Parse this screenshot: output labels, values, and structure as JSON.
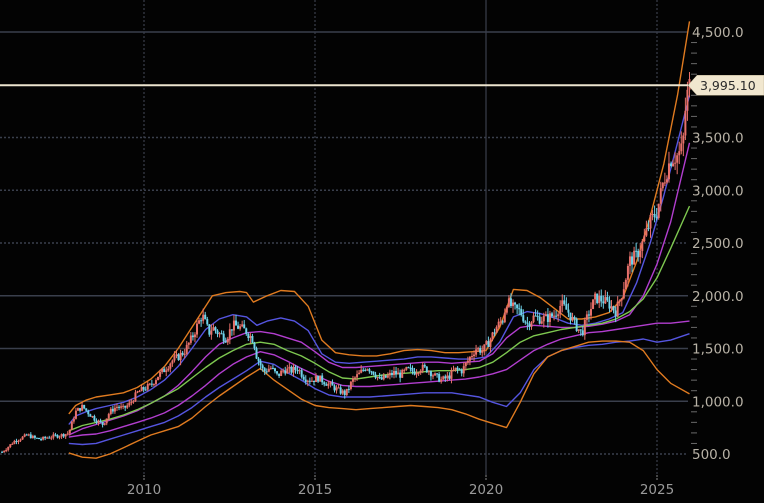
{
  "chart_data": {
    "type": "candlestick",
    "title": "",
    "xlabel": "",
    "ylabel": "",
    "ylim": [
      300,
      4700
    ],
    "xlim": [
      2005.8,
      2026.6
    ],
    "grid": true,
    "legend": "none",
    "y_ticks": [
      "500.0",
      "1,000.0",
      "1,500.0",
      "2,000.0",
      "2,500.0",
      "3,000.0",
      "3,500.0",
      "4,500.0"
    ],
    "y_tick_values": [
      500,
      1000,
      1500,
      2000,
      2500,
      3000,
      3500,
      4500
    ],
    "x_ticks": [
      "2010",
      "2015",
      "2020",
      "2025"
    ],
    "x_tick_values": [
      2010,
      2015,
      2020,
      2025
    ],
    "last_price": 3995.1,
    "last_price_label": "3,995.10",
    "series": [
      {
        "name": "price_close",
        "color_up": "#e8716b",
        "color_down": "#6fd3ea",
        "x": [
          2005.85,
          2006.0,
          2006.2,
          2006.4,
          2006.6,
          2006.8,
          2007.0,
          2007.2,
          2007.4,
          2007.6,
          2007.8,
          2008.0,
          2008.2,
          2008.4,
          2008.6,
          2008.8,
          2009.0,
          2009.2,
          2009.4,
          2009.6,
          2009.8,
          2010.0,
          2010.2,
          2010.4,
          2010.6,
          2010.8,
          2011.0,
          2011.2,
          2011.4,
          2011.6,
          2011.7,
          2011.9,
          2012.0,
          2012.2,
          2012.4,
          2012.6,
          2012.8,
          2013.0,
          2013.2,
          2013.3,
          2013.5,
          2013.7,
          2013.9,
          2014.1,
          2014.3,
          2014.5,
          2014.7,
          2014.9,
          2015.1,
          2015.3,
          2015.5,
          2015.7,
          2015.9,
          2016.1,
          2016.3,
          2016.5,
          2016.7,
          2016.9,
          2017.1,
          2017.3,
          2017.5,
          2017.7,
          2017.9,
          2018.1,
          2018.3,
          2018.5,
          2018.7,
          2018.9,
          2019.1,
          2019.3,
          2019.5,
          2019.7,
          2019.9,
          2020.1,
          2020.3,
          2020.5,
          2020.6,
          2020.8,
          2021.0,
          2021.2,
          2021.4,
          2021.6,
          2021.8,
          2022.0,
          2022.2,
          2022.4,
          2022.6,
          2022.8,
          2023.0,
          2023.2,
          2023.4,
          2023.6,
          2023.8,
          2024.0,
          2024.2,
          2024.4,
          2024.6,
          2024.8,
          2025.0,
          2025.2,
          2025.4,
          2025.6,
          2025.75,
          2025.85,
          2025.95
        ],
        "values": [
          520,
          560,
          620,
          650,
          680,
          650,
          640,
          660,
          670,
          680,
          700,
          900,
          950,
          880,
          820,
          780,
          900,
          950,
          930,
          980,
          1080,
          1120,
          1150,
          1240,
          1300,
          1380,
          1420,
          1480,
          1600,
          1750,
          1820,
          1650,
          1700,
          1640,
          1600,
          1720,
          1700,
          1660,
          1580,
          1420,
          1280,
          1320,
          1240,
          1300,
          1290,
          1310,
          1220,
          1200,
          1220,
          1180,
          1140,
          1100,
          1070,
          1200,
          1260,
          1330,
          1280,
          1200,
          1230,
          1270,
          1250,
          1300,
          1280,
          1320,
          1300,
          1240,
          1200,
          1230,
          1300,
          1290,
          1400,
          1500,
          1480,
          1570,
          1700,
          1780,
          1950,
          1880,
          1850,
          1730,
          1800,
          1780,
          1790,
          1820,
          1920,
          1850,
          1730,
          1640,
          1830,
          1980,
          1960,
          1920,
          1850,
          2050,
          2330,
          2380,
          2520,
          2700,
          2800,
          3100,
          3300,
          3330,
          3400,
          3850,
          3995
        ]
      },
      {
        "name": "bollinger_upper_3sd",
        "color": "#e07b20",
        "x": [
          2007.8,
          2008.0,
          2008.3,
          2008.6,
          2009.0,
          2009.4,
          2009.8,
          2010.2,
          2010.6,
          2011.0,
          2011.4,
          2011.8,
          2012.0,
          2012.4,
          2012.8,
          2013.0,
          2013.2,
          2013.6,
          2014.0,
          2014.4,
          2014.8,
          2015.2,
          2015.6,
          2016.0,
          2016.4,
          2016.8,
          2017.2,
          2017.6,
          2018.0,
          2018.4,
          2018.8,
          2019.2,
          2019.6,
          2020.0,
          2020.4,
          2020.8,
          2021.2,
          2021.6,
          2022.0,
          2022.4,
          2022.8,
          2023.2,
          2023.6,
          2024.0,
          2024.4,
          2024.8,
          2025.2,
          2025.6,
          2025.95
        ],
        "values": [
          880,
          960,
          1010,
          1040,
          1060,
          1080,
          1130,
          1210,
          1330,
          1500,
          1700,
          1900,
          2000,
          2030,
          2040,
          2030,
          1940,
          2000,
          2050,
          2040,
          1900,
          1580,
          1460,
          1440,
          1430,
          1430,
          1450,
          1480,
          1490,
          1480,
          1460,
          1460,
          1470,
          1480,
          1700,
          2060,
          2050,
          1980,
          1880,
          1780,
          1780,
          1800,
          1840,
          1980,
          2320,
          2750,
          3250,
          3900,
          4600
        ]
      },
      {
        "name": "bollinger_upper_2sd",
        "color": "#5555e0",
        "x": [
          2007.8,
          2008.0,
          2008.3,
          2008.6,
          2009.0,
          2009.4,
          2009.8,
          2010.2,
          2010.6,
          2011.0,
          2011.4,
          2011.8,
          2012.2,
          2012.6,
          2013.0,
          2013.3,
          2013.6,
          2014.0,
          2014.4,
          2014.8,
          2015.2,
          2015.6,
          2016.0,
          2016.4,
          2016.8,
          2017.2,
          2017.6,
          2018.0,
          2018.4,
          2018.8,
          2019.2,
          2019.6,
          2020.0,
          2020.4,
          2020.8,
          2021.2,
          2021.6,
          2022.0,
          2022.4,
          2022.8,
          2023.2,
          2023.6,
          2024.0,
          2024.4,
          2024.8,
          2025.2,
          2025.6,
          2025.95
        ],
        "values": [
          780,
          860,
          900,
          930,
          960,
          990,
          1040,
          1110,
          1200,
          1330,
          1500,
          1680,
          1780,
          1820,
          1800,
          1720,
          1760,
          1790,
          1760,
          1670,
          1450,
          1370,
          1360,
          1370,
          1380,
          1390,
          1400,
          1420,
          1420,
          1410,
          1400,
          1400,
          1420,
          1560,
          1800,
          1850,
          1830,
          1790,
          1740,
          1720,
          1740,
          1780,
          1840,
          2120,
          2500,
          2950,
          3450,
          3900
        ]
      },
      {
        "name": "bollinger_upper_1sd",
        "color": "#b23ecf",
        "x": [
          2007.8,
          2008.2,
          2008.6,
          2009.0,
          2009.4,
          2009.8,
          2010.2,
          2010.6,
          2011.0,
          2011.4,
          2011.8,
          2012.2,
          2012.6,
          2013.0,
          2013.4,
          2013.8,
          2014.2,
          2014.6,
          2015.0,
          2015.4,
          2015.8,
          2016.2,
          2016.6,
          2017.0,
          2017.4,
          2017.8,
          2018.2,
          2018.6,
          2019.0,
          2019.4,
          2019.8,
          2020.2,
          2020.6,
          2021.0,
          2021.4,
          2021.8,
          2022.2,
          2022.6,
          2023.0,
          2023.4,
          2023.8,
          2024.2,
          2024.6,
          2025.0,
          2025.4,
          2025.95
        ],
        "values": [
          680,
          740,
          780,
          820,
          860,
          910,
          980,
          1050,
          1150,
          1280,
          1420,
          1540,
          1600,
          1650,
          1660,
          1640,
          1600,
          1560,
          1470,
          1370,
          1320,
          1320,
          1330,
          1340,
          1350,
          1360,
          1370,
          1370,
          1360,
          1370,
          1380,
          1450,
          1600,
          1700,
          1720,
          1710,
          1700,
          1700,
          1710,
          1730,
          1760,
          1820,
          2000,
          2300,
          2700,
          3450
        ]
      },
      {
        "name": "moving_average",
        "color": "#7ec850",
        "x": [
          2007.8,
          2008.2,
          2008.6,
          2009.0,
          2009.4,
          2009.8,
          2010.2,
          2010.6,
          2011.0,
          2011.4,
          2011.8,
          2012.2,
          2012.6,
          2013.0,
          2013.4,
          2013.8,
          2014.2,
          2014.6,
          2015.0,
          2015.4,
          2015.8,
          2016.2,
          2016.6,
          2017.0,
          2017.4,
          2017.8,
          2018.2,
          2018.6,
          2019.0,
          2019.4,
          2019.8,
          2020.2,
          2020.6,
          2021.0,
          2021.4,
          2021.8,
          2022.2,
          2022.6,
          2023.0,
          2023.4,
          2023.8,
          2024.2,
          2024.6,
          2025.0,
          2025.4,
          2025.95
        ],
        "values": [
          720,
          770,
          800,
          830,
          870,
          920,
          980,
          1050,
          1120,
          1220,
          1320,
          1410,
          1480,
          1540,
          1560,
          1540,
          1480,
          1430,
          1360,
          1280,
          1220,
          1210,
          1230,
          1250,
          1260,
          1270,
          1280,
          1290,
          1290,
          1300,
          1320,
          1370,
          1460,
          1560,
          1620,
          1650,
          1680,
          1700,
          1720,
          1740,
          1780,
          1850,
          1970,
          2170,
          2450,
          2850
        ]
      },
      {
        "name": "bollinger_lower_1sd",
        "color": "#b23ecf",
        "x": [
          2007.8,
          2008.2,
          2008.6,
          2009.0,
          2009.4,
          2009.8,
          2010.2,
          2010.6,
          2011.0,
          2011.4,
          2011.8,
          2012.2,
          2012.6,
          2013.0,
          2013.4,
          2013.8,
          2014.2,
          2014.6,
          2015.0,
          2015.4,
          2015.8,
          2016.2,
          2016.6,
          2017.0,
          2017.4,
          2017.8,
          2018.2,
          2018.6,
          2019.0,
          2019.4,
          2019.8,
          2020.2,
          2020.6,
          2021.0,
          2021.4,
          2021.8,
          2022.2,
          2022.6,
          2023.0,
          2023.4,
          2023.8,
          2024.2,
          2024.6,
          2025.0,
          2025.4,
          2025.95
        ],
        "values": [
          660,
          680,
          690,
          720,
          760,
          800,
          840,
          890,
          960,
          1050,
          1150,
          1260,
          1350,
          1420,
          1470,
          1440,
          1380,
          1310,
          1250,
          1190,
          1150,
          1140,
          1140,
          1150,
          1160,
          1170,
          1180,
          1190,
          1200,
          1210,
          1230,
          1260,
          1300,
          1390,
          1480,
          1540,
          1590,
          1620,
          1650,
          1660,
          1680,
          1700,
          1720,
          1740,
          1740,
          1760
        ]
      },
      {
        "name": "bollinger_lower_2sd",
        "color": "#5555e0",
        "x": [
          2007.8,
          2008.2,
          2008.6,
          2009.0,
          2009.4,
          2009.8,
          2010.2,
          2010.6,
          2011.0,
          2011.4,
          2011.8,
          2012.2,
          2012.6,
          2013.0,
          2013.4,
          2013.8,
          2014.2,
          2014.6,
          2015.0,
          2015.4,
          2015.8,
          2016.2,
          2016.6,
          2017.0,
          2017.4,
          2017.8,
          2018.2,
          2018.6,
          2019.0,
          2019.4,
          2019.8,
          2020.2,
          2020.6,
          2021.0,
          2021.4,
          2021.8,
          2022.2,
          2022.6,
          2023.0,
          2023.4,
          2023.8,
          2024.2,
          2024.6,
          2025.0,
          2025.4,
          2025.95
        ],
        "values": [
          600,
          590,
          600,
          640,
          680,
          720,
          760,
          800,
          860,
          940,
          1040,
          1130,
          1210,
          1290,
          1380,
          1350,
          1270,
          1200,
          1120,
          1060,
          1040,
          1040,
          1040,
          1050,
          1060,
          1070,
          1080,
          1080,
          1080,
          1060,
          1040,
          990,
          950,
          1080,
          1300,
          1420,
          1480,
          1510,
          1530,
          1540,
          1560,
          1570,
          1590,
          1560,
          1580,
          1640
        ]
      },
      {
        "name": "bollinger_lower_3sd",
        "color": "#e07b20",
        "x": [
          2007.8,
          2008.2,
          2008.6,
          2009.0,
          2009.4,
          2009.8,
          2010.2,
          2010.6,
          2011.0,
          2011.4,
          2011.8,
          2012.2,
          2012.6,
          2013.0,
          2013.4,
          2013.8,
          2014.2,
          2014.6,
          2015.0,
          2015.4,
          2015.8,
          2016.2,
          2016.6,
          2017.0,
          2017.4,
          2017.8,
          2018.2,
          2018.6,
          2019.0,
          2019.4,
          2019.8,
          2020.2,
          2020.6,
          2021.0,
          2021.4,
          2021.8,
          2022.2,
          2022.6,
          2023.0,
          2023.4,
          2023.8,
          2024.2,
          2024.6,
          2025.0,
          2025.4,
          2025.95
        ],
        "values": [
          510,
          470,
          460,
          500,
          560,
          620,
          680,
          720,
          760,
          840,
          950,
          1050,
          1140,
          1230,
          1310,
          1200,
          1110,
          1020,
          960,
          940,
          930,
          920,
          930,
          940,
          950,
          960,
          950,
          940,
          920,
          880,
          830,
          790,
          750,
          990,
          1260,
          1420,
          1480,
          1520,
          1560,
          1570,
          1570,
          1560,
          1480,
          1300,
          1170,
          1070
        ]
      }
    ]
  },
  "axis": {
    "y_labels": [
      "4,500.0",
      "3,500.0",
      "3,000.0",
      "2,500.0",
      "2,000.0",
      "1,500.0",
      "1,000.0",
      "500.0"
    ],
    "x_labels": [
      "2010",
      "2015",
      "2020",
      "2025"
    ]
  },
  "colors": {
    "background": "#030303",
    "grid": "#3a3f4c",
    "last_price_line": "#ece4cf",
    "last_price_badge": "#f1e7cf",
    "axis_text": "#b8b2a6"
  }
}
